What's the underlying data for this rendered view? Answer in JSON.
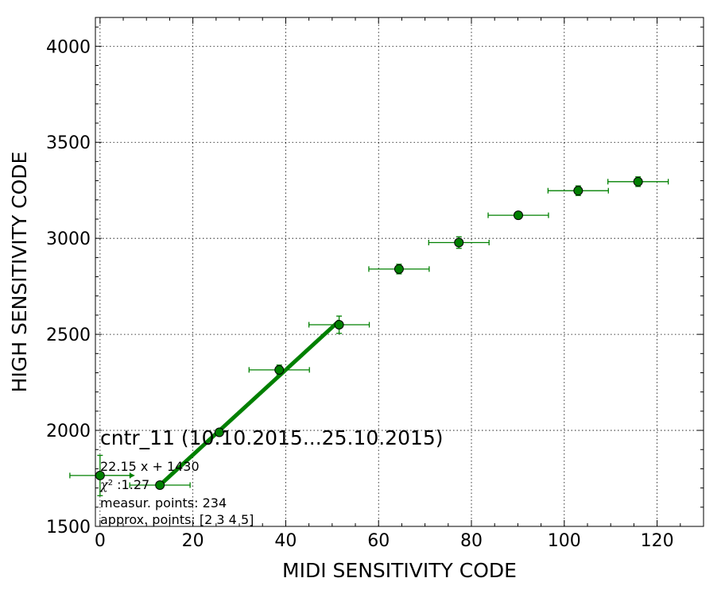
{
  "chart_data": {
    "type": "scatter",
    "xlabel": "MIDI SENSITIVITY CODE",
    "ylabel": "HIGH SENSITIVITY CODE",
    "xlim": [
      -1,
      130
    ],
    "ylim": [
      1500,
      4150
    ],
    "x_ticks": [
      0,
      20,
      40,
      60,
      80,
      100,
      120
    ],
    "y_ticks": [
      1500,
      2000,
      2500,
      3000,
      3500,
      4000
    ],
    "x_tick_labels": [
      "0",
      "20",
      "40",
      "60",
      "80",
      "100",
      "120"
    ],
    "y_tick_labels": [
      "1500",
      "2000",
      "2500",
      "3000",
      "3500",
      "4000"
    ],
    "grid": true,
    "colors": {
      "marker": "#008000",
      "marker_edge": "#000000",
      "fit_line": "#008000"
    },
    "series": [
      {
        "type": "errorbar-scatter",
        "points": [
          {
            "x": 0.0,
            "y": 1765,
            "xerr": 6.5,
            "yerr": 105
          },
          {
            "x": 12.9,
            "y": 1715,
            "xerr": 6.5,
            "yerr": 15
          },
          {
            "x": 25.7,
            "y": 1990,
            "xerr": 0,
            "yerr": 0
          },
          {
            "x": 38.6,
            "y": 2315,
            "xerr": 6.5,
            "yerr": 25
          },
          {
            "x": 51.5,
            "y": 2550,
            "xerr": 6.5,
            "yerr": 45
          },
          {
            "x": 64.4,
            "y": 2840,
            "xerr": 6.5,
            "yerr": 25
          },
          {
            "x": 77.3,
            "y": 2978,
            "xerr": 6.5,
            "yerr": 30
          },
          {
            "x": 90.1,
            "y": 3120,
            "xerr": 6.5,
            "yerr": 15
          },
          {
            "x": 103.0,
            "y": 3248,
            "xerr": 6.5,
            "yerr": 25
          },
          {
            "x": 115.9,
            "y": 3295,
            "xerr": 6.5,
            "yerr": 25
          }
        ]
      },
      {
        "type": "fit-line",
        "x": [
          12.9,
          51.5
        ],
        "y": [
          1715,
          2570
        ]
      }
    ],
    "annotations": {
      "title": "cntr_11 (10.10.2015...25.10.2015)",
      "fit": "22.15 x + 1430",
      "chi_symbol": "χ",
      "chi_sup": "2",
      "chi_value": " :1.27",
      "measur": "measur. points: 234",
      "approx": "approx. points: [2 3 4 5]"
    }
  }
}
